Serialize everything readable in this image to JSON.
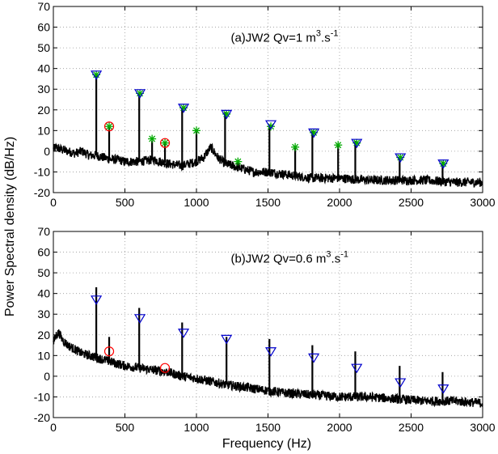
{
  "figure": {
    "ylabel": "Power Spectral density (dB/Hz)",
    "xlabel": "Frequency (Hz)"
  },
  "chart_data": [
    {
      "type": "line",
      "panel": "a",
      "title_prefix": "(a)JW2 Qv=1 m",
      "title_sup": "3",
      "title_mid": ".s",
      "title_sup2": "-1",
      "xlim": [
        0,
        3000
      ],
      "ylim": [
        -20,
        70
      ],
      "xticks": [
        0,
        500,
        1000,
        1500,
        2000,
        2500,
        3000
      ],
      "yticks": [
        -20,
        -10,
        0,
        10,
        20,
        30,
        40,
        50,
        60,
        70
      ],
      "grid": true,
      "colors": {
        "spectrum": "#000000",
        "triangle": "#0000cc",
        "circle": "#ff0000",
        "star": "#00aa00"
      },
      "spectrum_envelope": {
        "x": [
          0,
          20,
          50,
          100,
          150,
          200,
          250,
          300,
          350,
          400,
          450,
          500,
          600,
          700,
          800,
          900,
          1000,
          1050,
          1100,
          1150,
          1200,
          1300,
          1400,
          1500,
          1600,
          1700,
          1800,
          1900,
          2000,
          2200,
          2400,
          2600,
          2800,
          3000
        ],
        "y": [
          1,
          2,
          1,
          0,
          -1,
          0,
          -2,
          -2,
          -3,
          -4,
          -4,
          -5,
          -5,
          -4,
          -6,
          -7,
          -5,
          -3,
          2,
          -3,
          -6,
          -8,
          -10,
          -10,
          -11,
          -12,
          -13,
          -13,
          -13,
          -14,
          -14,
          -14,
          -15,
          -15
        ]
      },
      "peaks": [
        {
          "x": 300,
          "y": 37
        },
        {
          "x": 390,
          "y": 12
        },
        {
          "x": 600,
          "y": 28
        },
        {
          "x": 690,
          "y": 5
        },
        {
          "x": 780,
          "y": 4
        },
        {
          "x": 900,
          "y": 21
        },
        {
          "x": 1000,
          "y": 10
        },
        {
          "x": 1200,
          "y": 19
        },
        {
          "x": 1290,
          "y": -5
        },
        {
          "x": 1510,
          "y": 13
        },
        {
          "x": 1690,
          "y": 2
        },
        {
          "x": 1810,
          "y": 10
        },
        {
          "x": 1990,
          "y": 3
        },
        {
          "x": 2110,
          "y": 5
        },
        {
          "x": 2420,
          "y": -3
        },
        {
          "x": 2720,
          "y": -5
        }
      ],
      "triangles": [
        {
          "x": 300,
          "y": 37
        },
        {
          "x": 605,
          "y": 28
        },
        {
          "x": 910,
          "y": 21
        },
        {
          "x": 1210,
          "y": 18
        },
        {
          "x": 1520,
          "y": 13
        },
        {
          "x": 1820,
          "y": 9
        },
        {
          "x": 2120,
          "y": 4
        },
        {
          "x": 2425,
          "y": -3
        },
        {
          "x": 2725,
          "y": -6
        }
      ],
      "circles": [
        {
          "x": 390,
          "y": 12
        },
        {
          "x": 780,
          "y": 4
        }
      ],
      "stars": [
        {
          "x": 300,
          "y": 37
        },
        {
          "x": 390,
          "y": 12
        },
        {
          "x": 605,
          "y": 28
        },
        {
          "x": 690,
          "y": 6
        },
        {
          "x": 780,
          "y": 4
        },
        {
          "x": 910,
          "y": 21
        },
        {
          "x": 1000,
          "y": 10
        },
        {
          "x": 1210,
          "y": 18
        },
        {
          "x": 1290,
          "y": -5
        },
        {
          "x": 1520,
          "y": 12
        },
        {
          "x": 1690,
          "y": 2
        },
        {
          "x": 1820,
          "y": 9
        },
        {
          "x": 1990,
          "y": 3
        },
        {
          "x": 2120,
          "y": 4
        },
        {
          "x": 2425,
          "y": -3
        },
        {
          "x": 2725,
          "y": -6
        }
      ]
    },
    {
      "type": "line",
      "panel": "b",
      "title_prefix": "(b)JW2 Qv=0.6 m",
      "title_sup": "3",
      "title_mid": ".s",
      "title_sup2": "-1",
      "xlim": [
        0,
        3000
      ],
      "ylim": [
        -20,
        70
      ],
      "xticks": [
        0,
        500,
        1000,
        1500,
        2000,
        2500,
        3000
      ],
      "yticks": [
        -20,
        -10,
        0,
        10,
        20,
        30,
        40,
        50,
        60,
        70
      ],
      "grid": true,
      "colors": {
        "spectrum": "#000000",
        "triangle": "#0000cc",
        "circle": "#ff0000"
      },
      "spectrum_envelope": {
        "x": [
          0,
          20,
          40,
          60,
          100,
          150,
          200,
          250,
          300,
          400,
          500,
          600,
          700,
          800,
          900,
          1000,
          1200,
          1400,
          1600,
          1800,
          2000,
          2200,
          2400,
          2600,
          2800,
          3000
        ],
        "y": [
          16,
          20,
          21,
          18,
          15,
          13,
          11,
          10,
          9,
          7,
          5,
          4,
          3,
          2,
          0,
          -1,
          -4,
          -6,
          -8,
          -9,
          -10,
          -10,
          -11,
          -12,
          -12,
          -13
        ]
      },
      "peaks": [
        {
          "x": 300,
          "y": 43
        },
        {
          "x": 390,
          "y": 19
        },
        {
          "x": 600,
          "y": 33
        },
        {
          "x": 900,
          "y": 26
        },
        {
          "x": 1210,
          "y": 19
        },
        {
          "x": 1510,
          "y": 18
        },
        {
          "x": 1810,
          "y": 15
        },
        {
          "x": 2110,
          "y": 12
        },
        {
          "x": 2420,
          "y": 5
        },
        {
          "x": 2720,
          "y": 2
        }
      ],
      "triangles": [
        {
          "x": 300,
          "y": 37
        },
        {
          "x": 605,
          "y": 28
        },
        {
          "x": 910,
          "y": 21
        },
        {
          "x": 1210,
          "y": 18
        },
        {
          "x": 1520,
          "y": 12
        },
        {
          "x": 1820,
          "y": 9
        },
        {
          "x": 2120,
          "y": 4
        },
        {
          "x": 2425,
          "y": -3
        },
        {
          "x": 2725,
          "y": -6
        }
      ],
      "circles": [
        {
          "x": 390,
          "y": 12
        },
        {
          "x": 780,
          "y": 4
        }
      ]
    }
  ]
}
